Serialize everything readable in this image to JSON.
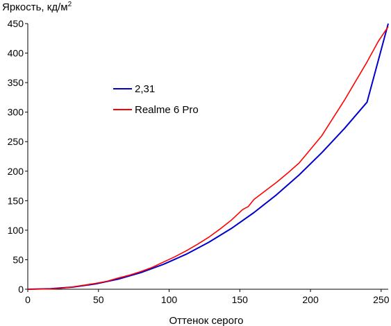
{
  "chart_data": {
    "type": "line",
    "title": "",
    "ylabel": "Яркость, кд/м",
    "ylabel_sup": "2",
    "xlabel": "Оттенок серого",
    "xlim": [
      0,
      255
    ],
    "ylim": [
      0,
      450
    ],
    "xticks": [
      0,
      50,
      100,
      150,
      200,
      250
    ],
    "yticks": [
      0,
      50,
      100,
      150,
      200,
      250,
      300,
      350,
      400,
      450
    ],
    "grid": false,
    "legend_position": "upper-left-inner",
    "series": [
      {
        "name": "2,31",
        "color": "#0000cc",
        "x": [
          0,
          16,
          32,
          48,
          64,
          80,
          96,
          112,
          128,
          144,
          160,
          176,
          192,
          208,
          224,
          240,
          255
        ],
        "y": [
          0,
          0.8,
          3.7,
          9.1,
          17.2,
          28.2,
          42.2,
          59.2,
          79.4,
          102.9,
          129.8,
          160.0,
          193.8,
          231.2,
          272.2,
          316.9,
          450
        ]
      },
      {
        "name": "Realme 6 Pro",
        "color": "#ff0000",
        "x": [
          0,
          16,
          24,
          32,
          48,
          56,
          64,
          72,
          80,
          88,
          96,
          104,
          112,
          120,
          128,
          136,
          144,
          152,
          156,
          160,
          176,
          184,
          192,
          208,
          224,
          240,
          248,
          255
        ],
        "y": [
          0,
          0.6,
          1.8,
          4.0,
          10.0,
          13.5,
          19.0,
          24.0,
          30.0,
          37.0,
          46.0,
          55.0,
          65.0,
          76.0,
          88.0,
          102.0,
          117.0,
          135.0,
          140.0,
          152.0,
          181.0,
          197.0,
          214.0,
          260.0,
          320.0,
          385.0,
          420.0,
          445.0
        ]
      }
    ]
  }
}
